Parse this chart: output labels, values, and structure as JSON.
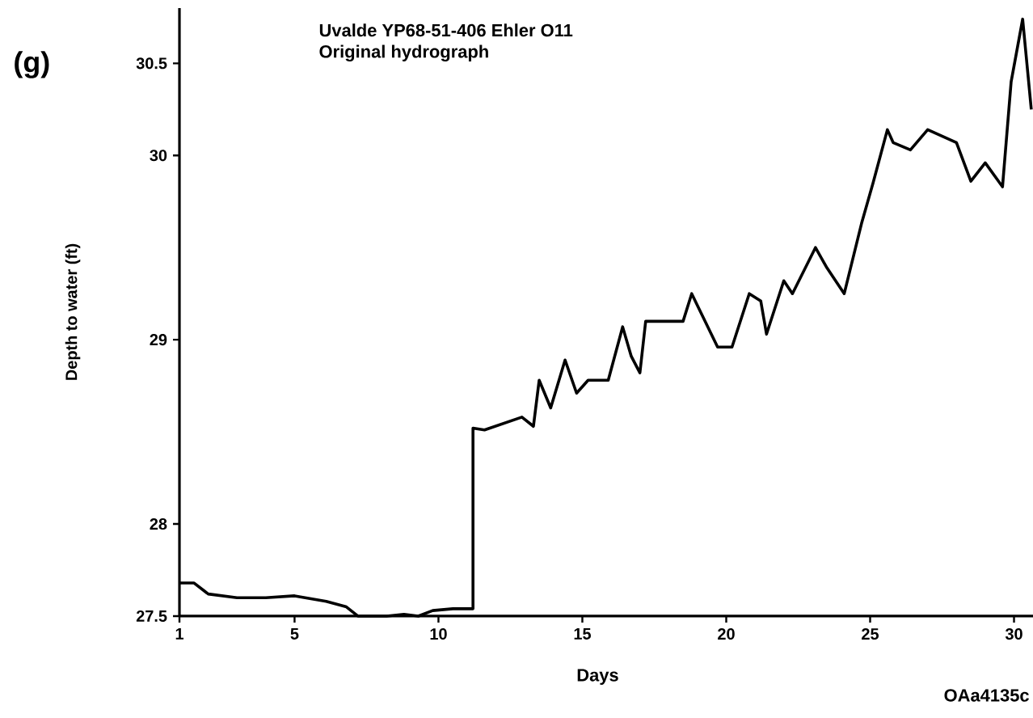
{
  "chart_data": {
    "type": "line",
    "title": "Uvalde YP68-51-406 Ehler O11",
    "subtitle": "Original hydrograph",
    "xlabel": "Days",
    "ylabel": "Depth to water (ft)",
    "annotations": [
      "(g)",
      "OAa4135c"
    ],
    "color": "#000000",
    "x": [
      1,
      1.5,
      2.0,
      3.0,
      4.0,
      5.0,
      6.1,
      6.8,
      7.2,
      8.2,
      8.8,
      9.3,
      9.8,
      10.5,
      11.2,
      11.2,
      11.6,
      12.9,
      13.3,
      13.5,
      13.9,
      14.4,
      14.8,
      15.2,
      15.9,
      16.4,
      16.7,
      17.0,
      17.2,
      18.5,
      18.8,
      19.7,
      20.2,
      20.8,
      21.2,
      21.4,
      22.0,
      22.3,
      23.1,
      23.5,
      24.1,
      24.7,
      25.1,
      25.6,
      25.8,
      26.4,
      27.0,
      28.0,
      28.5,
      29.0,
      29.6,
      29.9,
      30.3,
      30.6
    ],
    "values": [
      27.68,
      27.68,
      27.62,
      27.6,
      27.6,
      27.61,
      27.58,
      27.55,
      27.5,
      27.5,
      27.51,
      27.5,
      27.53,
      27.54,
      27.54,
      28.52,
      28.51,
      28.58,
      28.53,
      28.78,
      28.63,
      28.89,
      28.71,
      28.78,
      28.78,
      29.07,
      28.91,
      28.82,
      29.1,
      29.1,
      29.25,
      28.96,
      28.96,
      29.25,
      29.21,
      29.03,
      29.32,
      29.25,
      29.5,
      29.39,
      29.25,
      29.63,
      29.85,
      30.14,
      30.07,
      30.03,
      30.14,
      30.07,
      29.86,
      29.96,
      29.83,
      30.4,
      30.74,
      30.25
    ],
    "xlim": [
      1,
      30.66
    ],
    "ylim": [
      27.5,
      30.8
    ],
    "xticks": [
      1,
      5,
      10,
      15,
      20,
      25,
      30
    ],
    "yticks": [
      27.5,
      28,
      29,
      30,
      30.5
    ]
  }
}
